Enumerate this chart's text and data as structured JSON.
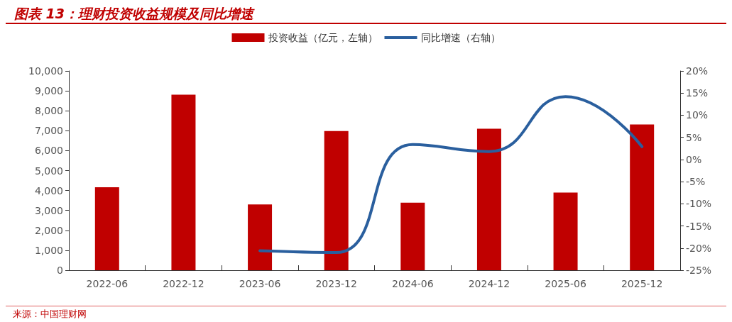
{
  "chart_data": {
    "type": "bar",
    "title": "图表 13：理财投资收益规模及同比增速",
    "categories": [
      "2022-06",
      "2022-12",
      "2023-06",
      "2023-12",
      "2024-06",
      "2024-12",
      "2025-06",
      "2025-12"
    ],
    "series": [
      {
        "name": "投资收益（亿元，左轴）",
        "color": "#c00000",
        "values": [
          4160,
          8810,
          3300,
          6980,
          3390,
          7100,
          3900,
          7310
        ]
      },
      {
        "name": "同比增速（右轴）",
        "type": "line",
        "axis": "y2",
        "color": "#2a5f9e",
        "values": [
          null,
          null,
          -20.6,
          -21.0,
          3.4,
          1.8,
          14.2,
          2.9
        ]
      }
    ],
    "ylim": [
      0,
      10000
    ],
    "yticks": [
      0,
      {
        "value": 1000,
        "label": "1,000"
      },
      {
        "value": 2000,
        "label": "2,000"
      },
      {
        "value": 3000,
        "label": "3,000"
      },
      {
        "value": 4000,
        "label": "4,000"
      },
      {
        "value": 5000,
        "label": "5,000"
      },
      {
        "value": 6000,
        "label": "6,000"
      },
      {
        "value": 7000,
        "label": "7,000"
      },
      {
        "value": 8000,
        "label": "8,000"
      },
      {
        "value": 9000,
        "label": "9,000"
      },
      {
        "value": 10000,
        "label": "10,000"
      }
    ],
    "y2lim": [
      -25,
      20
    ],
    "y2ticks": [
      {
        "value": -25,
        "label": "-25%"
      },
      {
        "value": -20,
        "label": "-20%"
      },
      {
        "value": -15,
        "label": "-15%"
      },
      {
        "value": -10,
        "label": "-10%"
      },
      {
        "value": -5,
        "label": "-5%"
      },
      {
        "value": 0,
        "label": "0%"
      },
      {
        "value": 5,
        "label": "5%"
      },
      {
        "value": 10,
        "label": "10%"
      },
      {
        "value": 15,
        "label": "15%"
      },
      {
        "value": 20,
        "label": "20%"
      }
    ],
    "grid": false,
    "legend": "top",
    "marker": "none",
    "line_style": "solid",
    "annotations": [
      "来源：中国理财网"
    ]
  }
}
